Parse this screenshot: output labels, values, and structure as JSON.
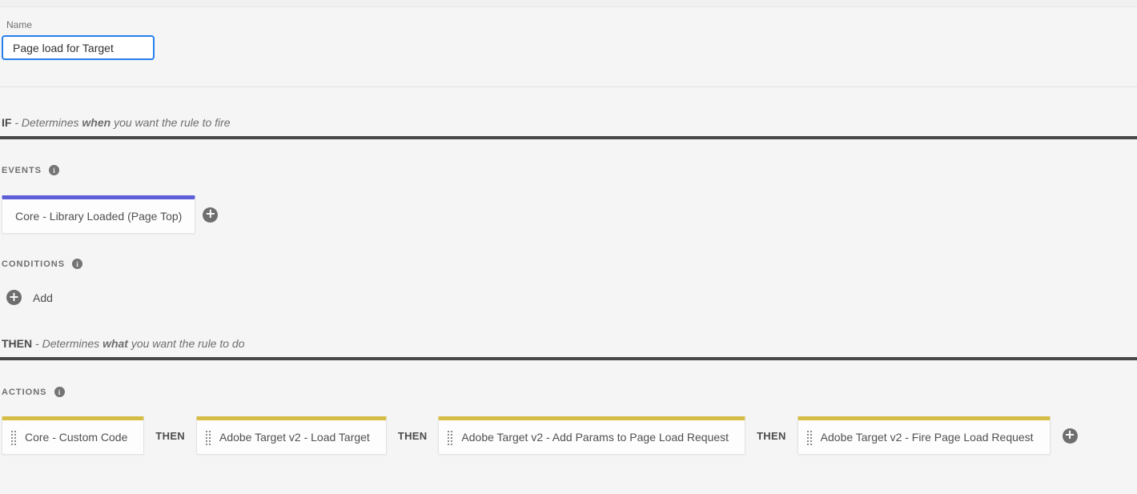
{
  "name_field": {
    "label": "Name",
    "value": "Page load for Target"
  },
  "if_heading": {
    "keyword": "IF",
    "sep": "-",
    "text1": "Determines",
    "emphasis": "when",
    "text2": "you want the rule to fire"
  },
  "then_heading": {
    "keyword": "THEN",
    "sep": "-",
    "text1": "Determines",
    "emphasis": "what",
    "text2": "you want the rule to do"
  },
  "events": {
    "heading": "EVENTS",
    "cards": [
      {
        "label": "Core - Library Loaded (Page Top)"
      }
    ]
  },
  "conditions": {
    "heading": "CONDITIONS",
    "add_label": "Add"
  },
  "actions": {
    "heading": "ACTIONS",
    "connector_label": "THEN",
    "cards": [
      {
        "label": "Core - Custom Code"
      },
      {
        "label": "Adobe Target v2 - Load Target"
      },
      {
        "label": "Adobe Target v2 - Add Params to Page Load Request"
      },
      {
        "label": "Adobe Target v2 - Fire Page Load Request"
      }
    ]
  },
  "icons": {
    "info_glyph": "i",
    "plus_glyph": "+"
  },
  "colors": {
    "event_accent": "#5e5ed8",
    "action_accent": "#d6bd45",
    "input_focus_border": "#2680eb",
    "section_rule": "#484848",
    "background": "#f5f5f5"
  }
}
